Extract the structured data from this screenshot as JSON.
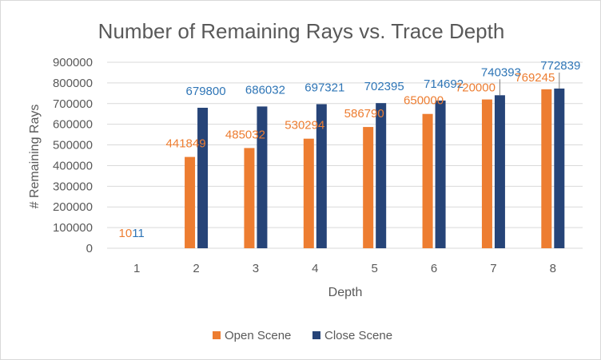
{
  "chart_data": {
    "type": "bar",
    "title": "Number of Remaining Rays vs. Trace Depth",
    "xlabel": "Depth",
    "ylabel": "# Remaining Rays",
    "categories": [
      "1",
      "2",
      "3",
      "4",
      "5",
      "6",
      "7",
      "8"
    ],
    "series": [
      {
        "name": "Open Scene",
        "color": "#ED7D31",
        "values": [
          10,
          441849,
          485032,
          530294,
          586790,
          650000,
          720000,
          769245
        ]
      },
      {
        "name": "Close Scene",
        "color": "#264478",
        "label_color": "#2E75B6",
        "values": [
          11,
          679800,
          686032,
          697321,
          702395,
          714692,
          740393,
          772839
        ]
      }
    ],
    "ylim": [
      0,
      900000
    ],
    "yticks": [
      "0",
      "100000",
      "200000",
      "300000",
      "400000",
      "500000",
      "600000",
      "700000",
      "800000",
      "900000"
    ],
    "grid": true,
    "legend_position": "bottom",
    "data_labels": true
  }
}
